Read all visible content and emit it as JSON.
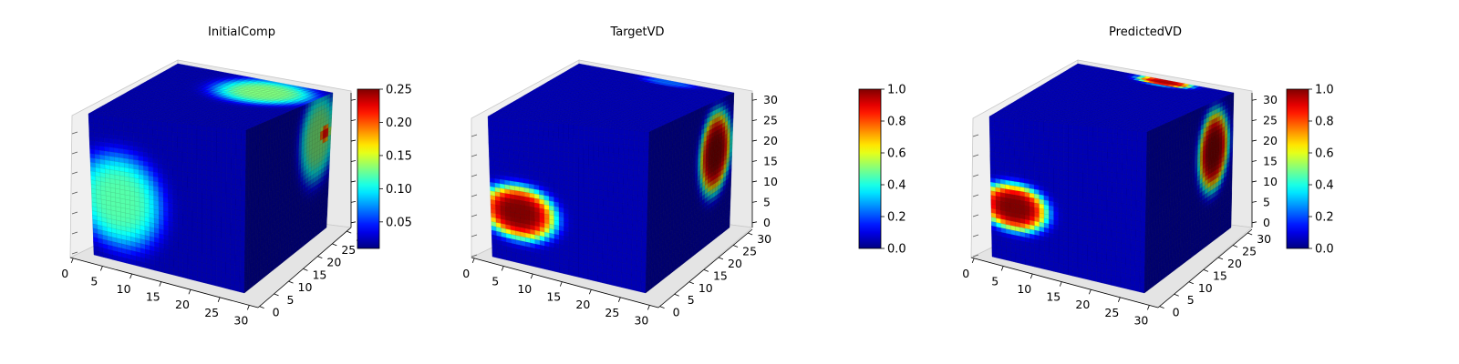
{
  "chart_data": [
    {
      "type": "voxel-3d",
      "title": "InitialComp",
      "grid_size": 32,
      "axes": {
        "x_ticks": [
          "0",
          "5",
          "10",
          "15",
          "20",
          "25",
          "30"
        ],
        "y_ticks": [
          "0",
          "5",
          "10",
          "15",
          "20",
          "25",
          "30"
        ],
        "z_ticks": []
      },
      "colormap": "jet",
      "colorbar": {
        "vmin": 0.01,
        "vmax": 0.25,
        "ticks": [
          "0.05",
          "0.10",
          "0.15",
          "0.20",
          "0.25"
        ],
        "tick_values": [
          0.05,
          0.1,
          0.15,
          0.2,
          0.25
        ]
      },
      "background_value": 0.02,
      "blobs": [
        {
          "face": "front",
          "u": 0.18,
          "v": 0.42,
          "ru": 0.26,
          "rv": 0.3,
          "value": 0.12
        },
        {
          "face": "top",
          "u": 0.68,
          "v": 0.78,
          "ru": 0.28,
          "rv": 0.22,
          "value": 0.13
        },
        {
          "face": "right",
          "u": 0.85,
          "v": 0.72,
          "ru": 0.2,
          "rv": 0.3,
          "value": 0.13
        },
        {
          "face": "right",
          "u": 0.93,
          "v": 0.72,
          "ru": 0.06,
          "rv": 0.07,
          "value": 0.22
        }
      ]
    },
    {
      "type": "voxel-3d",
      "title": "TargetVD",
      "grid_size": 32,
      "axes": {
        "x_ticks": [
          "0",
          "5",
          "10",
          "15",
          "20",
          "25",
          "30"
        ],
        "y_ticks": [
          "0",
          "5",
          "10",
          "15",
          "20",
          "25",
          "30"
        ],
        "z_ticks": [
          "0",
          "5",
          "10",
          "15",
          "20",
          "25",
          "30"
        ]
      },
      "colormap": "jet",
      "colorbar": {
        "vmin": 0.0,
        "vmax": 1.0,
        "ticks": [
          "0.0",
          "0.2",
          "0.4",
          "0.6",
          "0.8",
          "1.0"
        ],
        "tick_values": [
          0.0,
          0.2,
          0.4,
          0.6,
          0.8,
          1.0
        ]
      },
      "background_value": 0.05,
      "blobs": [
        {
          "face": "front",
          "u": 0.18,
          "v": 0.35,
          "ru": 0.22,
          "rv": 0.17,
          "value": 1.0
        },
        {
          "face": "right",
          "u": 0.8,
          "v": 0.63,
          "ru": 0.17,
          "rv": 0.27,
          "value": 1.0
        },
        {
          "face": "top",
          "u": 0.6,
          "v": 0.96,
          "ru": 0.16,
          "rv": 0.05,
          "value": 0.22
        }
      ]
    },
    {
      "type": "voxel-3d",
      "title": "PredictedVD",
      "grid_size": 32,
      "axes": {
        "x_ticks": [
          "0",
          "5",
          "10",
          "15",
          "20",
          "25",
          "30"
        ],
        "y_ticks": [
          "0",
          "5",
          "10",
          "15",
          "20",
          "25",
          "30"
        ],
        "z_ticks": [
          "0",
          "5",
          "10",
          "15",
          "20",
          "25",
          "30"
        ]
      },
      "colormap": "jet",
      "colorbar": {
        "vmin": 0.0,
        "vmax": 1.0,
        "ticks": [
          "0.0",
          "0.2",
          "0.4",
          "0.6",
          "0.8",
          "1.0"
        ],
        "tick_values": [
          0.0,
          0.2,
          0.4,
          0.6,
          0.8,
          1.0
        ]
      },
      "background_value": 0.05,
      "blobs": [
        {
          "face": "front",
          "u": 0.15,
          "v": 0.38,
          "ru": 0.2,
          "rv": 0.15,
          "value": 1.0
        },
        {
          "face": "right",
          "u": 0.78,
          "v": 0.65,
          "ru": 0.16,
          "rv": 0.26,
          "value": 1.0
        },
        {
          "face": "top",
          "u": 0.58,
          "v": 0.96,
          "ru": 0.16,
          "rv": 0.06,
          "value": 0.95
        }
      ]
    }
  ]
}
